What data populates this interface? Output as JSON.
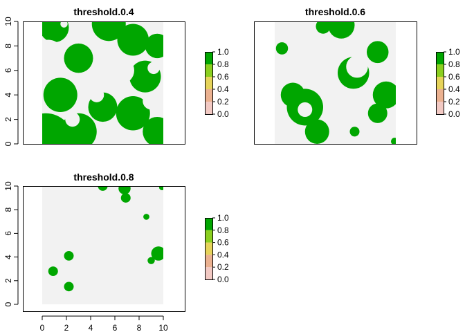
{
  "chart_data": [
    {
      "type": "heatmap",
      "title": "threshold.0.4",
      "xlim": [
        0,
        10
      ],
      "ylim": [
        0,
        10
      ],
      "x_ticks": [],
      "y_ticks": [
        "0",
        "2",
        "4",
        "6",
        "8",
        "10"
      ],
      "legend": {
        "ticks": [
          "0.0",
          "0.2",
          "0.4",
          "0.6",
          "0.8",
          "1.0"
        ],
        "range": [
          0,
          1
        ]
      },
      "colors": {
        "background": "#f2f2f2",
        "foreground": "#00a600"
      },
      "background_value": 0,
      "blobs": [
        {
          "x": 0.3,
          "y": 0.2,
          "r": 2.3
        },
        {
          "x": 3.0,
          "y": 1.0,
          "r": 1.5
        },
        {
          "x": 5.0,
          "y": 3.0,
          "r": 1.2
        },
        {
          "x": 1.5,
          "y": 4.0,
          "r": 1.4
        },
        {
          "x": 7.5,
          "y": 2.5,
          "r": 1.4
        },
        {
          "x": 9.5,
          "y": 1.0,
          "r": 1.2
        },
        {
          "x": 8.5,
          "y": 5.5,
          "r": 1.3
        },
        {
          "x": 3.0,
          "y": 7.0,
          "r": 1.2
        },
        {
          "x": 7.5,
          "y": 8.5,
          "r": 1.3
        },
        {
          "x": 5.5,
          "y": 9.8,
          "r": 1.4
        },
        {
          "x": 1.0,
          "y": 9.5,
          "r": 1.2
        },
        {
          "x": 9.5,
          "y": 8.0,
          "r": 1.0
        }
      ],
      "holes": [
        {
          "x": 0.5,
          "y": 7.2,
          "r": 1.3
        },
        {
          "x": 6.5,
          "y": 6.0,
          "r": 1.1
        },
        {
          "x": 4.5,
          "y": 4.0,
          "r": 0.6
        },
        {
          "x": 9.0,
          "y": 3.5,
          "r": 0.7
        },
        {
          "x": 2.5,
          "y": 2.0,
          "r": 0.6
        },
        {
          "x": 7.5,
          "y": 0.5,
          "r": 0.6
        },
        {
          "x": 1.8,
          "y": 9.8,
          "r": 0.3
        },
        {
          "x": 9.2,
          "y": 6.2,
          "r": 0.5
        }
      ]
    },
    {
      "type": "heatmap",
      "title": "threshold.0.6",
      "xlim": [
        0,
        10
      ],
      "ylim": [
        0,
        10
      ],
      "x_ticks": [],
      "y_ticks": [],
      "legend": {
        "ticks": [
          "0.0",
          "0.2",
          "0.4",
          "0.6",
          "0.8",
          "1.0"
        ],
        "range": [
          0,
          1
        ]
      },
      "colors": {
        "background": "#f2f2f2",
        "foreground": "#00a600"
      },
      "background_value": 0,
      "blobs": [
        {
          "x": 2.5,
          "y": 3.0,
          "r": 1.5
        },
        {
          "x": 3.5,
          "y": 1.0,
          "r": 1.0
        },
        {
          "x": 1.5,
          "y": 4.0,
          "r": 1.0
        },
        {
          "x": 6.5,
          "y": 5.8,
          "r": 1.3
        },
        {
          "x": 5.5,
          "y": 9.7,
          "r": 1.1
        },
        {
          "x": 8.5,
          "y": 7.5,
          "r": 0.9
        },
        {
          "x": 9.2,
          "y": 4.0,
          "r": 1.1
        },
        {
          "x": 8.5,
          "y": 2.5,
          "r": 0.8
        },
        {
          "x": 0.6,
          "y": 7.8,
          "r": 0.5
        },
        {
          "x": 4.0,
          "y": 9.6,
          "r": 0.6
        },
        {
          "x": 6.6,
          "y": 1.0,
          "r": 0.4
        },
        {
          "x": 9.9,
          "y": 0.2,
          "r": 0.3
        }
      ],
      "holes": [
        {
          "x": 6.8,
          "y": 6.3,
          "r": 0.9
        },
        {
          "x": 2.5,
          "y": 2.8,
          "r": 0.6
        }
      ]
    },
    {
      "type": "heatmap",
      "title": "threshold.0.8",
      "xlim": [
        0,
        10
      ],
      "ylim": [
        0,
        10
      ],
      "x_ticks": [
        "0",
        "2",
        "4",
        "6",
        "8",
        "10"
      ],
      "y_ticks": [
        "0",
        "2",
        "4",
        "6",
        "8",
        "10"
      ],
      "legend": {
        "ticks": [
          "0.0",
          "0.2",
          "0.4",
          "0.6",
          "0.8",
          "1.0"
        ],
        "range": [
          0,
          1
        ]
      },
      "colors": {
        "background": "#f2f2f2",
        "foreground": "#00a600"
      },
      "background_value": 0,
      "blobs": [
        {
          "x": 2.2,
          "y": 4.1,
          "r": 0.4
        },
        {
          "x": 0.9,
          "y": 2.8,
          "r": 0.4
        },
        {
          "x": 2.2,
          "y": 1.5,
          "r": 0.4
        },
        {
          "x": 6.8,
          "y": 9.8,
          "r": 0.5
        },
        {
          "x": 6.9,
          "y": 9.0,
          "r": 0.4
        },
        {
          "x": 5.0,
          "y": 10.0,
          "r": 0.4
        },
        {
          "x": 8.6,
          "y": 7.4,
          "r": 0.25
        },
        {
          "x": 9.6,
          "y": 4.3,
          "r": 0.6
        },
        {
          "x": 9.0,
          "y": 3.7,
          "r": 0.3
        },
        {
          "x": 9.9,
          "y": 9.9,
          "r": 0.25
        }
      ],
      "holes": []
    }
  ]
}
